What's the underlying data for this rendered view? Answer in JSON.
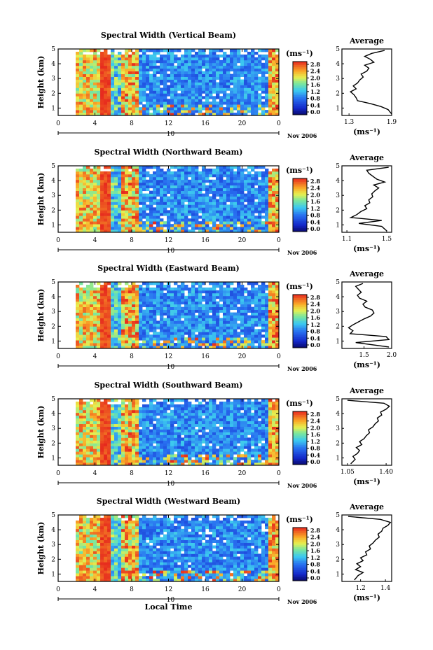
{
  "chart_data": [
    {
      "type": "heatmap",
      "title": "Spectral Width (Vertical Beam)",
      "ylabel": "Height (km)",
      "x_ticks": [
        "0",
        "4",
        "8",
        "12",
        "16",
        "20",
        "0"
      ],
      "date_tick": "10",
      "date_label": "Nov 2006",
      "xlim": [
        0,
        24
      ],
      "ylim": [
        0.5,
        5
      ],
      "y_ticks": [
        "1",
        "2",
        "3",
        "4",
        "5"
      ],
      "colorbar": {
        "unit": "(ms⁻¹)",
        "ticks": [
          "2.8",
          "2.4",
          "2.0",
          "1.6",
          "1.2",
          "0.8",
          "0.4",
          "0.0"
        ],
        "range": [
          0,
          2.8
        ]
      },
      "average_profile": {
        "title": "Average",
        "xlabel": "(ms⁻¹)",
        "x_ticks": [
          "1.3",
          "1.9"
        ],
        "xlim": [
          1.2,
          1.9
        ],
        "ylim": [
          0.5,
          5
        ],
        "heights": [
          0.6,
          0.9,
          1.1,
          1.3,
          1.5,
          1.7,
          1.9,
          2.1,
          2.3,
          2.5,
          2.7,
          2.9,
          3.1,
          3.3,
          3.5,
          3.7,
          3.9,
          4.1,
          4.3,
          4.5,
          4.7,
          4.9
        ],
        "values": [
          1.9,
          1.85,
          1.75,
          1.6,
          1.42,
          1.4,
          1.37,
          1.32,
          1.4,
          1.36,
          1.42,
          1.45,
          1.5,
          1.47,
          1.55,
          1.58,
          1.52,
          1.65,
          1.6,
          1.52,
          1.62,
          1.8
        ]
      }
    },
    {
      "type": "heatmap",
      "title": "Spectral Width (Northward Beam)",
      "ylabel": "Height (km)",
      "x_ticks": [
        "0",
        "4",
        "8",
        "12",
        "16",
        "20",
        "0"
      ],
      "date_tick": "10",
      "date_label": "Nov 2006",
      "xlim": [
        0,
        24
      ],
      "ylim": [
        0.5,
        5
      ],
      "y_ticks": [
        "1",
        "2",
        "3",
        "4",
        "5"
      ],
      "colorbar": {
        "unit": "(ms⁻¹)",
        "ticks": [
          "2.8",
          "2.4",
          "2.0",
          "1.6",
          "1.2",
          "0.8",
          "0.4",
          "0.0"
        ],
        "range": [
          0,
          2.8
        ]
      },
      "average_profile": {
        "title": "Average",
        "xlabel": "(ms⁻¹)",
        "x_ticks": [
          "1.1",
          "1.5"
        ],
        "xlim": [
          1.05,
          1.55
        ],
        "ylim": [
          0.5,
          5
        ],
        "heights": [
          0.6,
          0.9,
          1.1,
          1.3,
          1.5,
          1.7,
          1.9,
          2.1,
          2.3,
          2.5,
          2.7,
          2.9,
          3.1,
          3.3,
          3.5,
          3.7,
          3.9,
          4.1,
          4.3,
          4.5,
          4.7,
          4.9
        ],
        "values": [
          1.5,
          1.45,
          1.22,
          1.45,
          1.14,
          1.2,
          1.24,
          1.3,
          1.28,
          1.33,
          1.32,
          1.36,
          1.35,
          1.38,
          1.42,
          1.37,
          1.48,
          1.4,
          1.36,
          1.32,
          1.3,
          1.52
        ]
      }
    },
    {
      "type": "heatmap",
      "title": "Spectral Width (Eastward Beam)",
      "ylabel": "Height (km)",
      "x_ticks": [
        "0",
        "4",
        "8",
        "12",
        "16",
        "20",
        "0"
      ],
      "date_tick": "10",
      "date_label": "Nov 2006",
      "xlim": [
        0,
        24
      ],
      "ylim": [
        0.5,
        5
      ],
      "y_ticks": [
        "1",
        "2",
        "3",
        "4",
        "5"
      ],
      "colorbar": {
        "unit": "(ms⁻¹)",
        "ticks": [
          "2.8",
          "2.4",
          "2.0",
          "1.6",
          "1.2",
          "0.8",
          "0.4",
          "0.0"
        ],
        "range": [
          0,
          2.8
        ]
      },
      "average_profile": {
        "title": "Average",
        "xlabel": "(ms⁻¹)",
        "x_ticks": [
          "1.5",
          "2.0"
        ],
        "xlim": [
          1.1,
          2.0
        ],
        "ylim": [
          0.5,
          5
        ],
        "heights": [
          0.6,
          0.9,
          1.1,
          1.3,
          1.5,
          1.7,
          1.9,
          2.1,
          2.3,
          2.5,
          2.7,
          2.9,
          3.1,
          3.3,
          3.5,
          3.7,
          3.9,
          4.1,
          4.3,
          4.5,
          4.7,
          4.9
        ],
        "values": [
          1.95,
          1.35,
          1.95,
          1.9,
          1.25,
          1.3,
          1.22,
          1.3,
          1.4,
          1.5,
          1.62,
          1.68,
          1.65,
          1.52,
          1.48,
          1.55,
          1.42,
          1.38,
          1.45,
          1.4,
          1.35,
          1.48
        ]
      }
    },
    {
      "type": "heatmap",
      "title": "Spectral Width (Southward Beam)",
      "ylabel": "Height (km)",
      "x_ticks": [
        "0",
        "4",
        "8",
        "12",
        "16",
        "20",
        "0"
      ],
      "date_tick": "10",
      "date_label": "Nov 2006",
      "xlim": [
        0,
        24
      ],
      "ylim": [
        0.5,
        5
      ],
      "y_ticks": [
        "1",
        "2",
        "3",
        "4",
        "5"
      ],
      "colorbar": {
        "unit": "(ms⁻¹)",
        "ticks": [
          "2.8",
          "2.4",
          "2.0",
          "1.6",
          "1.2",
          "0.8",
          "0.4",
          "0.0"
        ],
        "range": [
          0,
          2.8
        ]
      },
      "average_profile": {
        "title": "Average",
        "xlabel": "(ms⁻¹)",
        "x_ticks": [
          "1.05",
          "1.40"
        ],
        "xlim": [
          1.0,
          1.45
        ],
        "ylim": [
          0.5,
          5
        ],
        "heights": [
          0.6,
          0.9,
          1.1,
          1.3,
          1.5,
          1.7,
          1.9,
          2.1,
          2.3,
          2.5,
          2.7,
          2.9,
          3.1,
          3.3,
          3.5,
          3.7,
          3.9,
          4.1,
          4.3,
          4.5,
          4.7,
          4.9
        ],
        "values": [
          1.08,
          1.12,
          1.1,
          1.14,
          1.16,
          1.13,
          1.18,
          1.16,
          1.2,
          1.22,
          1.25,
          1.24,
          1.28,
          1.3,
          1.33,
          1.32,
          1.36,
          1.35,
          1.4,
          1.43,
          1.38,
          1.05
        ]
      }
    },
    {
      "type": "heatmap",
      "title": "Spectral Width (Westward Beam)",
      "ylabel": "Height (km)",
      "x_ticks": [
        "0",
        "4",
        "8",
        "12",
        "16",
        "20",
        "0"
      ],
      "date_tick": "10",
      "date_label": "Nov 2006",
      "xlabel": "Local Time",
      "xlim": [
        0,
        24
      ],
      "ylim": [
        0.5,
        5
      ],
      "y_ticks": [
        "1",
        "2",
        "3",
        "4",
        "5"
      ],
      "colorbar": {
        "unit": "(ms⁻¹)",
        "ticks": [
          "2.8",
          "2.4",
          "2.0",
          "1.6",
          "1.2",
          "0.8",
          "0.4",
          "0.0"
        ],
        "range": [
          0,
          2.8
        ]
      },
      "average_profile": {
        "title": "Average",
        "xlabel": "(ms⁻¹)",
        "x_ticks": [
          "1.2",
          "1.4"
        ],
        "xlim": [
          1.05,
          1.45
        ],
        "ylim": [
          0.5,
          5
        ],
        "heights": [
          0.6,
          0.9,
          1.1,
          1.3,
          1.5,
          1.7,
          1.9,
          2.1,
          2.3,
          2.5,
          2.7,
          2.9,
          3.1,
          3.3,
          3.5,
          3.7,
          3.9,
          4.1,
          4.3,
          4.5,
          4.7,
          4.9
        ],
        "values": [
          1.15,
          1.18,
          1.22,
          1.16,
          1.2,
          1.17,
          1.22,
          1.2,
          1.25,
          1.24,
          1.28,
          1.27,
          1.3,
          1.32,
          1.35,
          1.34,
          1.37,
          1.38,
          1.42,
          1.44,
          1.36,
          1.1
        ]
      }
    }
  ]
}
